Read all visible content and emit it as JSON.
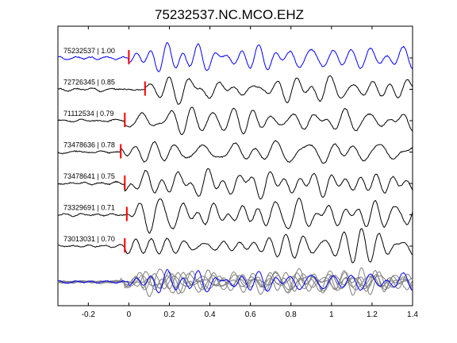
{
  "chart_data": {
    "type": "line",
    "title": "75232537.NC.MCO.EHZ",
    "xlabel": "",
    "ylabel": "",
    "xlim": [
      -0.35,
      1.4
    ],
    "xticks": [
      -0.2,
      0,
      0.2,
      0.4,
      0.6,
      0.8,
      1,
      1.2,
      1.4
    ],
    "xtick_labels": [
      "-0.2",
      "0",
      "0.2",
      "0.4",
      "0.6",
      "0.8",
      "1",
      "1.2",
      "1.4"
    ],
    "grid": false,
    "legend": "none",
    "colors": {
      "reference": "#0000ff",
      "trace": "#000000",
      "stack": "#808080",
      "pick": "#ff0000",
      "axes": "#000000"
    },
    "series": [
      {
        "event_id": "75232537",
        "correlation": "1.00",
        "label": "75232537 | 1.00",
        "pick_time": 0.0,
        "color": "#0000ff",
        "seed": 3
      },
      {
        "event_id": "72726345",
        "correlation": "0.85",
        "label": "72726345 | 0.85",
        "pick_time": 0.08,
        "color": "#000000",
        "seed": 7
      },
      {
        "event_id": "71112534",
        "correlation": "0.79",
        "label": "71112534 | 0.79",
        "pick_time": -0.02,
        "color": "#000000",
        "seed": 11
      },
      {
        "event_id": "73478636",
        "correlation": "0.78",
        "label": "73478636 | 0.78",
        "pick_time": -0.04,
        "color": "#000000",
        "seed": 13
      },
      {
        "event_id": "73478641",
        "correlation": "0.75",
        "label": "73478641 | 0.75",
        "pick_time": -0.02,
        "color": "#000000",
        "seed": 17
      },
      {
        "event_id": "73329691",
        "correlation": "0.71",
        "label": "73329691 | 0.71",
        "pick_time": -0.01,
        "color": "#000000",
        "seed": 19
      },
      {
        "event_id": "73013031",
        "correlation": "0.70",
        "label": "73013031 | 0.70",
        "pick_time": -0.02,
        "color": "#000000",
        "seed": 23
      }
    ],
    "stack": {
      "description": "overlay of all waveforms",
      "color_reference": "#0000ff",
      "color_others": "#808080"
    }
  }
}
